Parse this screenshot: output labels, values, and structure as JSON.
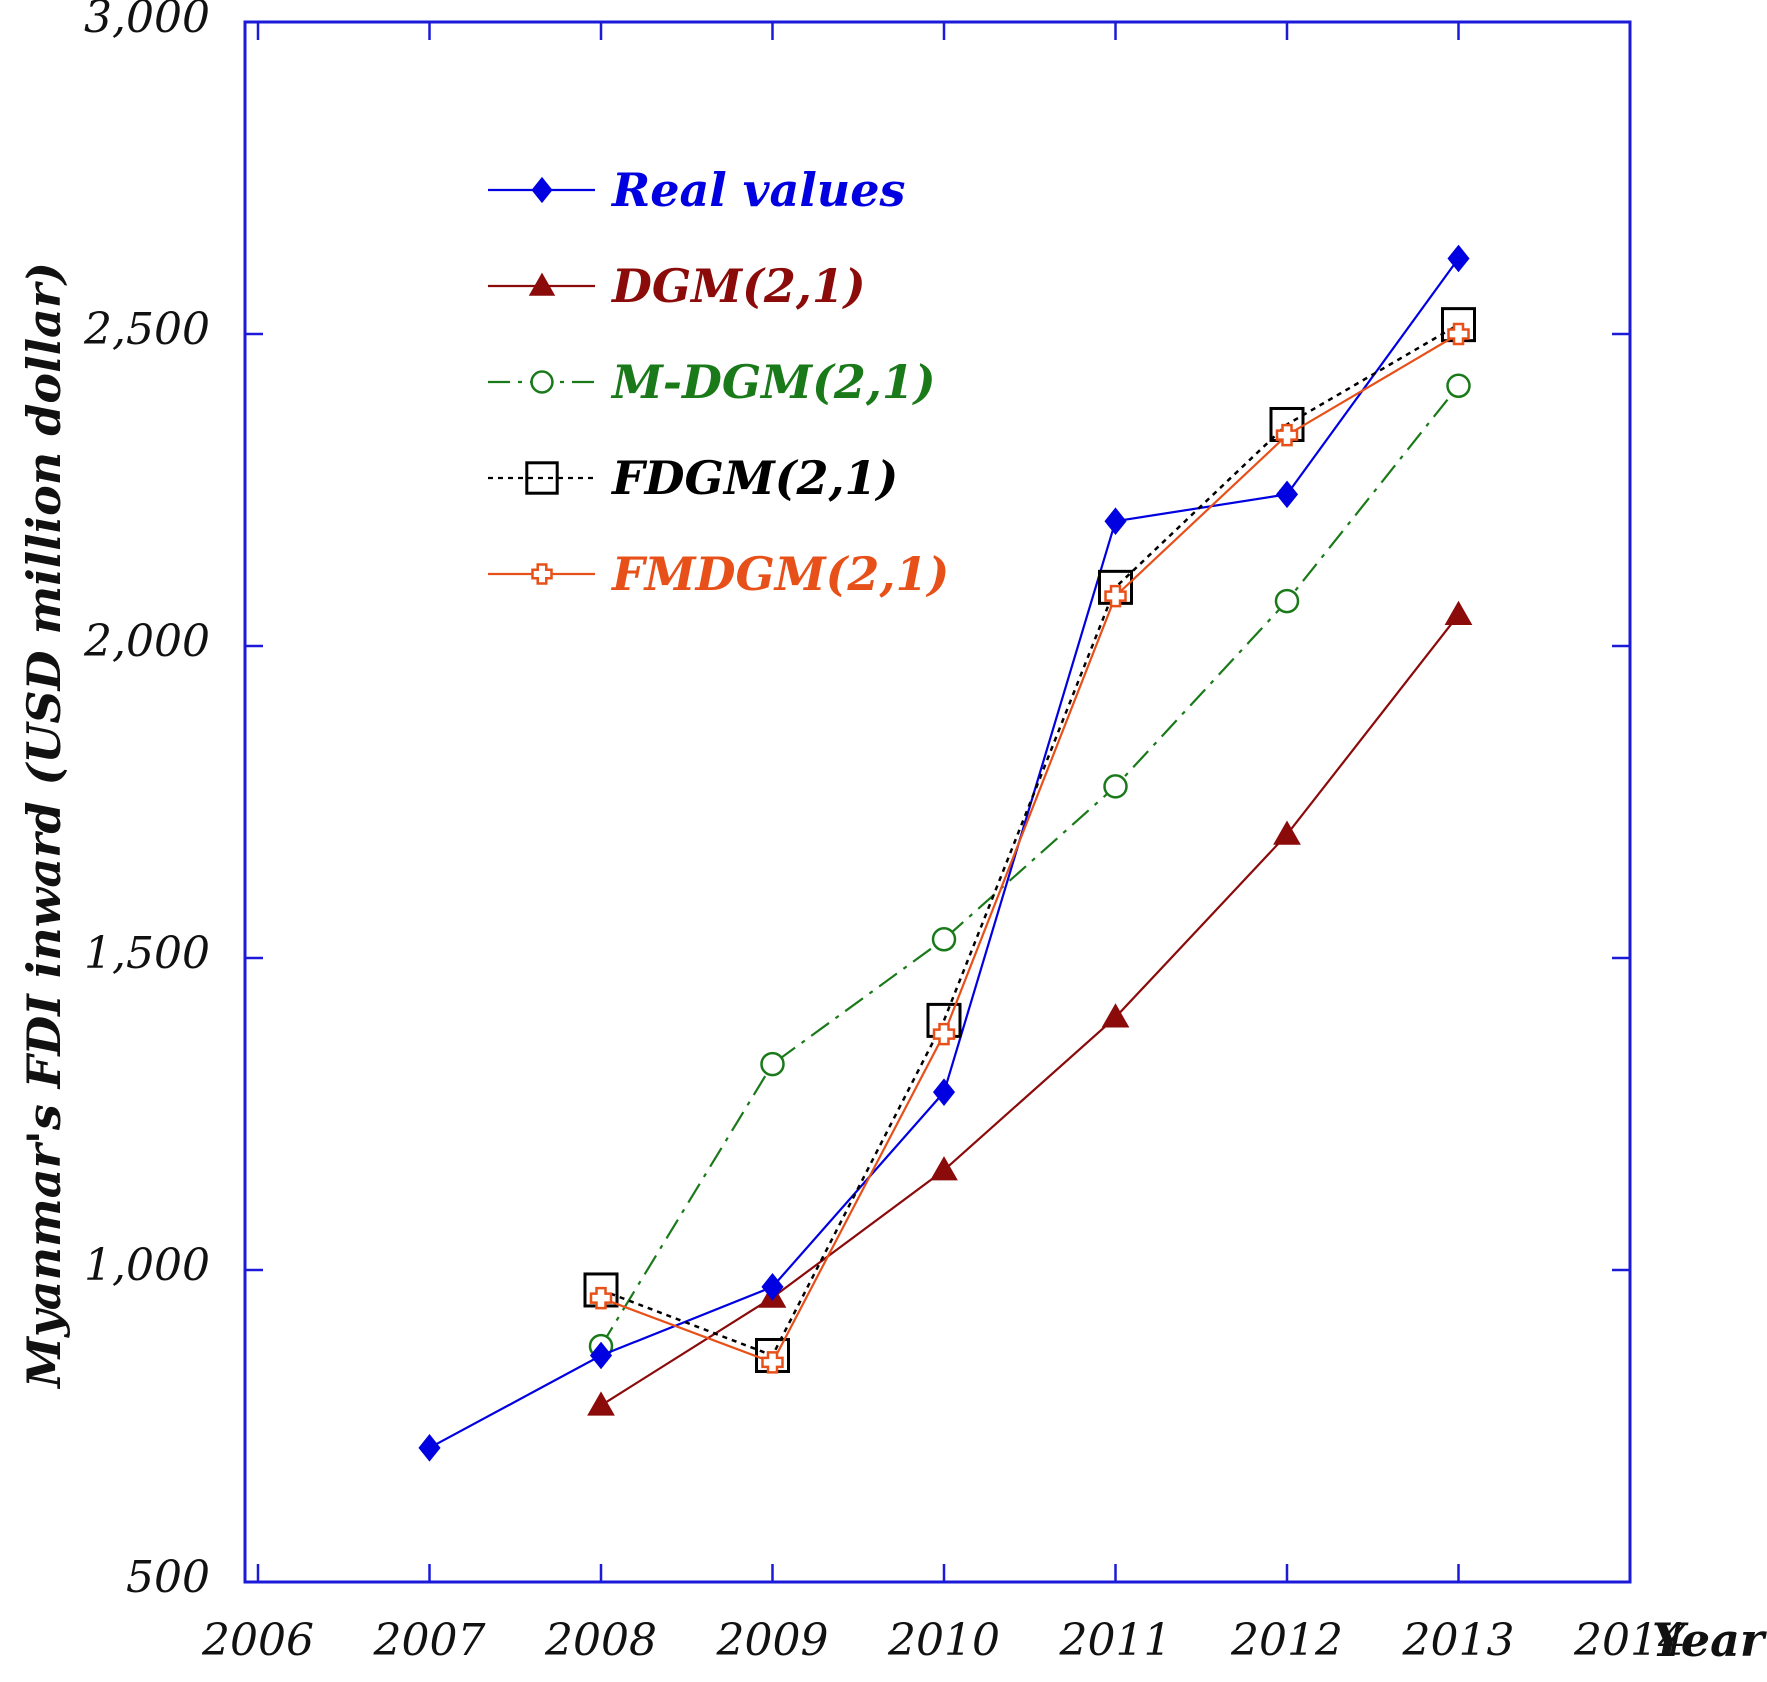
{
  "chart_data": {
    "type": "line",
    "title": "",
    "xlabel": "Year",
    "ylabel": "Myanmar's FDI inward (USD million dollar)",
    "xlim": [
      2006,
      2014
    ],
    "ylim": [
      500,
      3000
    ],
    "x_ticks": [
      "2006",
      "2007",
      "2008",
      "2009",
      "2010",
      "2011",
      "2012",
      "2013",
      "2014"
    ],
    "y_ticks": [
      "500",
      "1,000",
      "1,500",
      "2,000",
      "2,500",
      "3,000"
    ],
    "legend_position": "top-left",
    "grid": false,
    "series": [
      {
        "name": "Real values",
        "color": "#0000e0",
        "line": "solid",
        "marker": "diamond",
        "x": [
          2007,
          2008,
          2009,
          2010,
          2011,
          2012,
          2013
        ],
        "values": [
          715,
          863,
          973,
          1285,
          2200,
          2243,
          2621
        ]
      },
      {
        "name": "DGM(2,1)",
        "color": "#8b0a0a",
        "line": "solid",
        "marker": "triangle",
        "x": [
          2008,
          2009,
          2010,
          2011,
          2012,
          2013
        ],
        "values": [
          783,
          956,
          1160,
          1405,
          1698,
          2050
        ]
      },
      {
        "name": "M-DGM(2,1)",
        "color": "#1a7a1a",
        "line": "dashdot",
        "marker": "circle-open",
        "x": [
          2008,
          2009,
          2010,
          2011,
          2012,
          2013
        ],
        "values": [
          878,
          1330,
          1530,
          1775,
          2072,
          2417
        ]
      },
      {
        "name": "FDGM(2,1)",
        "color": "#000000",
        "line": "dotted",
        "marker": "square-open",
        "x": [
          2008,
          2009,
          2010,
          2011,
          2012,
          2013
        ],
        "values": [
          968,
          863,
          1400,
          2094,
          2355,
          2515
        ]
      },
      {
        "name": "FMDGM(2,1)",
        "color": "#e8501a",
        "line": "solid",
        "marker": "cross",
        "x": [
          2008,
          2009,
          2010,
          2011,
          2012,
          2013
        ],
        "values": [
          955,
          852,
          1378,
          2080,
          2338,
          2500
        ]
      }
    ]
  }
}
